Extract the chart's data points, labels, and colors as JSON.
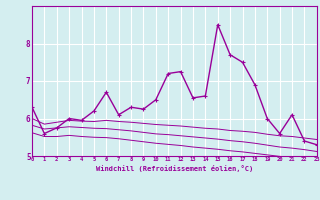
{
  "xlabel": "Windchill (Refroidissement éolien,°C)",
  "background_color": "#d4eef0",
  "line_color": "#990099",
  "grid_color": "#ffffff",
  "x_values": [
    0,
    1,
    2,
    3,
    4,
    5,
    6,
    7,
    8,
    9,
    10,
    11,
    12,
    13,
    14,
    15,
    16,
    17,
    18,
    19,
    20,
    21,
    22,
    23
  ],
  "main_line": [
    6.3,
    5.6,
    5.75,
    6.0,
    5.95,
    6.2,
    6.7,
    6.1,
    6.3,
    6.25,
    6.5,
    7.2,
    7.25,
    6.55,
    6.6,
    8.5,
    7.7,
    7.5,
    6.9,
    6.0,
    5.6,
    6.1,
    5.4,
    5.3
  ],
  "upper_band": [
    6.0,
    5.85,
    5.9,
    5.95,
    5.93,
    5.92,
    5.95,
    5.92,
    5.9,
    5.87,
    5.84,
    5.82,
    5.8,
    5.77,
    5.74,
    5.72,
    5.68,
    5.66,
    5.63,
    5.58,
    5.54,
    5.52,
    5.48,
    5.44
  ],
  "middle_band": [
    5.82,
    5.72,
    5.75,
    5.78,
    5.76,
    5.74,
    5.73,
    5.7,
    5.67,
    5.63,
    5.59,
    5.57,
    5.54,
    5.51,
    5.48,
    5.45,
    5.41,
    5.38,
    5.34,
    5.29,
    5.24,
    5.21,
    5.17,
    5.12
  ],
  "lower_band": [
    5.62,
    5.52,
    5.52,
    5.55,
    5.52,
    5.5,
    5.49,
    5.46,
    5.42,
    5.38,
    5.34,
    5.31,
    5.28,
    5.24,
    5.21,
    5.18,
    5.14,
    5.11,
    5.07,
    5.03,
    4.99,
    4.97,
    4.93,
    4.89
  ],
  "ylim": [
    5.0,
    9.0
  ],
  "yticks": [
    5,
    6,
    7,
    8
  ],
  "xlim": [
    0,
    23
  ]
}
